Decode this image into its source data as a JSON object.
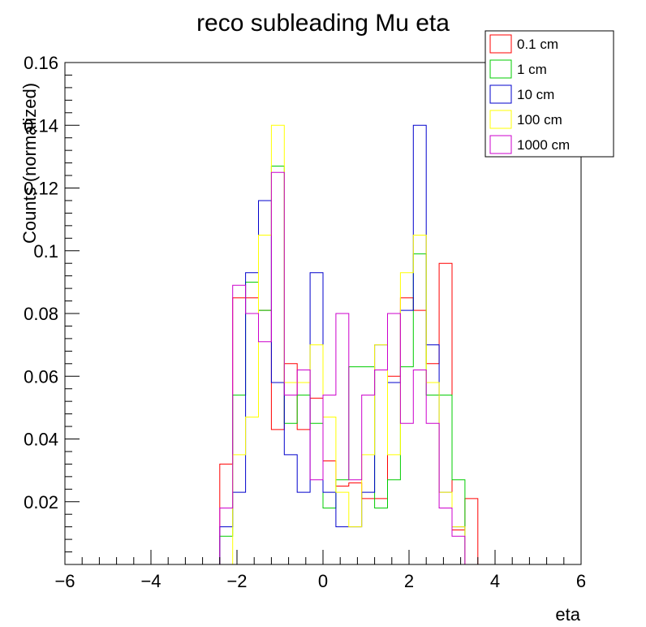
{
  "chart_data": {
    "type": "histogram",
    "title": "reco subleading Mu eta",
    "xlabel": "eta",
    "ylabel": "Counts (normalized)",
    "xlim": [
      -6,
      6
    ],
    "ylim": [
      0,
      0.16
    ],
    "bin_width": 0.3,
    "x_tick_labels": [
      "−6",
      "−4",
      "−2",
      "0",
      "2",
      "4",
      "6"
    ],
    "y_tick_labels": [
      "0.02",
      "0.04",
      "0.06",
      "0.08",
      "0.1",
      "0.12",
      "0.14",
      "0.16"
    ],
    "legend": "top-right",
    "series": [
      {
        "name": "0.1 cm",
        "color": "#ff0000",
        "bin_edges_start": -6.0,
        "values": [
          0,
          0,
          0,
          0,
          0,
          0,
          0,
          0,
          0,
          0,
          0,
          0,
          0.032,
          0.085,
          0.085,
          0.081,
          0.043,
          0.064,
          0.043,
          0.053,
          0.033,
          0.025,
          0.026,
          0.021,
          0.021,
          0.06,
          0.085,
          0.081,
          0.064,
          0.096,
          0.011,
          0.021,
          0,
          0,
          0,
          0,
          0,
          0,
          0,
          0
        ]
      },
      {
        "name": "1 cm",
        "color": "#00cc00",
        "bin_edges_start": -6.0,
        "values": [
          0,
          0,
          0,
          0,
          0,
          0,
          0,
          0,
          0,
          0,
          0,
          0,
          0.009,
          0.054,
          0.09,
          0.081,
          0.127,
          0.045,
          0.054,
          0.045,
          0.018,
          0.027,
          0.063,
          0.063,
          0.018,
          0.027,
          0.063,
          0.099,
          0.054,
          0.054,
          0.027,
          0,
          0,
          0,
          0,
          0,
          0,
          0,
          0,
          0
        ]
      },
      {
        "name": "10 cm",
        "color": "#0000cc",
        "bin_edges_start": -6.0,
        "values": [
          0,
          0,
          0,
          0,
          0,
          0,
          0,
          0,
          0,
          0,
          0,
          0,
          0.012,
          0.023,
          0.093,
          0.116,
          0.058,
          0.035,
          0.023,
          0.093,
          0.023,
          0.012,
          0.012,
          0.023,
          0.07,
          0.058,
          0.081,
          0.14,
          0.07,
          0.023,
          0.012,
          0,
          0,
          0,
          0,
          0,
          0,
          0,
          0,
          0
        ]
      },
      {
        "name": "100 cm",
        "color": "#ffff00",
        "bin_edges_start": -6.0,
        "values": [
          0,
          0,
          0,
          0,
          0,
          0,
          0,
          0,
          0,
          0,
          0,
          0,
          0,
          0.035,
          0.047,
          0.105,
          0.14,
          0.058,
          0.058,
          0.07,
          0.047,
          0.023,
          0.012,
          0.035,
          0.07,
          0.035,
          0.093,
          0.105,
          0.058,
          0.023,
          0.012,
          0,
          0,
          0,
          0,
          0,
          0,
          0,
          0,
          0
        ]
      },
      {
        "name": "1000 cm",
        "color": "#cc00cc",
        "bin_edges_start": -6.0,
        "values": [
          0,
          0,
          0,
          0,
          0,
          0,
          0,
          0,
          0,
          0,
          0,
          0,
          0.018,
          0.089,
          0.08,
          0.071,
          0.125,
          0.054,
          0.062,
          0.027,
          0.054,
          0.08,
          0.027,
          0.054,
          0.062,
          0.08,
          0.045,
          0.062,
          0.045,
          0.018,
          0.009,
          0,
          0,
          0,
          0,
          0,
          0,
          0,
          0,
          0
        ]
      }
    ]
  }
}
